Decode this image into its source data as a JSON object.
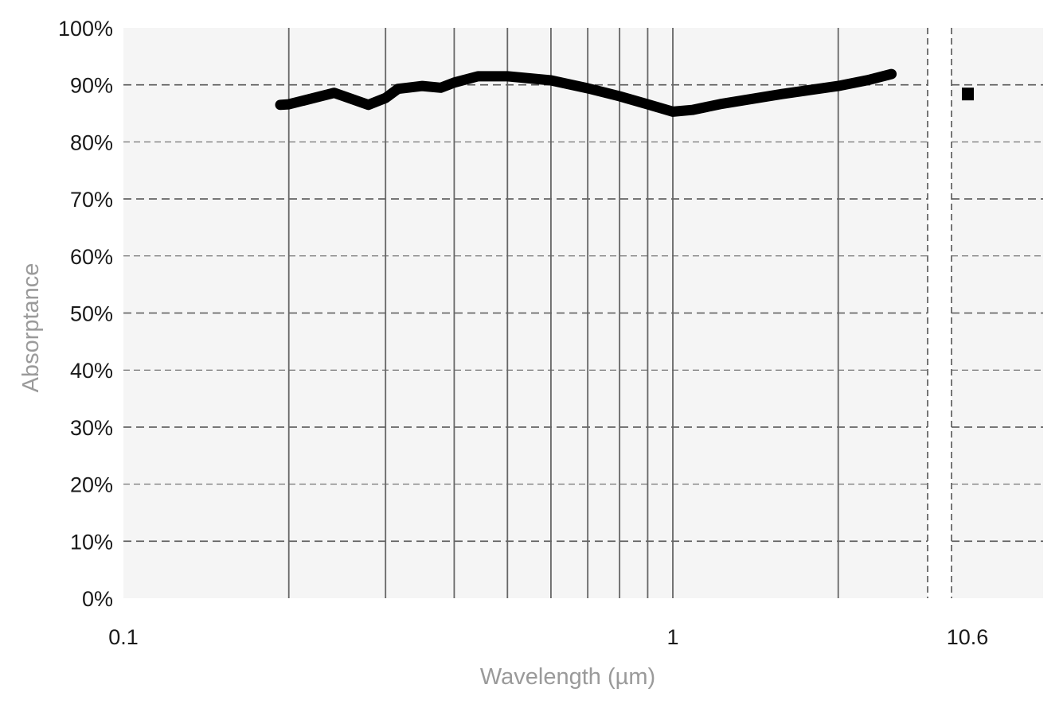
{
  "chart_data": {
    "type": "line",
    "title": "",
    "xlabel": "Wavelength (µm)",
    "ylabel": "Absorptance",
    "x_scale": "log",
    "xlim": [
      0.1,
      2.9
    ],
    "x_break": true,
    "x_tick_labels": [
      "0.1",
      "1",
      "10.6"
    ],
    "x_minor_gridlines": [
      0.2,
      0.3,
      0.4,
      0.5,
      0.6,
      0.7,
      0.8,
      0.9,
      1,
      2
    ],
    "ylim": [
      0,
      100
    ],
    "y_ticks": [
      0,
      10,
      20,
      30,
      40,
      50,
      60,
      70,
      80,
      90,
      100
    ],
    "y_tick_labels": [
      "0%",
      "10%",
      "20%",
      "30%",
      "40%",
      "50%",
      "60%",
      "70%",
      "80%",
      "90%",
      "100%"
    ],
    "grid": true,
    "series": [
      {
        "color": "#000000",
        "x": [
          0.193,
          0.2,
          0.242,
          0.279,
          0.3,
          0.316,
          0.35,
          0.378,
          0.4,
          0.442,
          0.5,
          0.6,
          0.7,
          0.8,
          0.9,
          1.0,
          1.085,
          1.23,
          1.58,
          2.0,
          2.28,
          2.5
        ],
        "y": [
          86.5,
          86.6,
          88.6,
          86.5,
          87.7,
          89.3,
          89.8,
          89.5,
          90.4,
          91.5,
          91.5,
          90.8,
          89.4,
          88.0,
          86.6,
          85.3,
          85.6,
          86.7,
          88.4,
          89.8,
          90.9,
          91.9
        ]
      },
      {
        "color": "#000000",
        "marker": "square",
        "x": [
          10.6
        ],
        "y": [
          88.4
        ]
      }
    ]
  }
}
